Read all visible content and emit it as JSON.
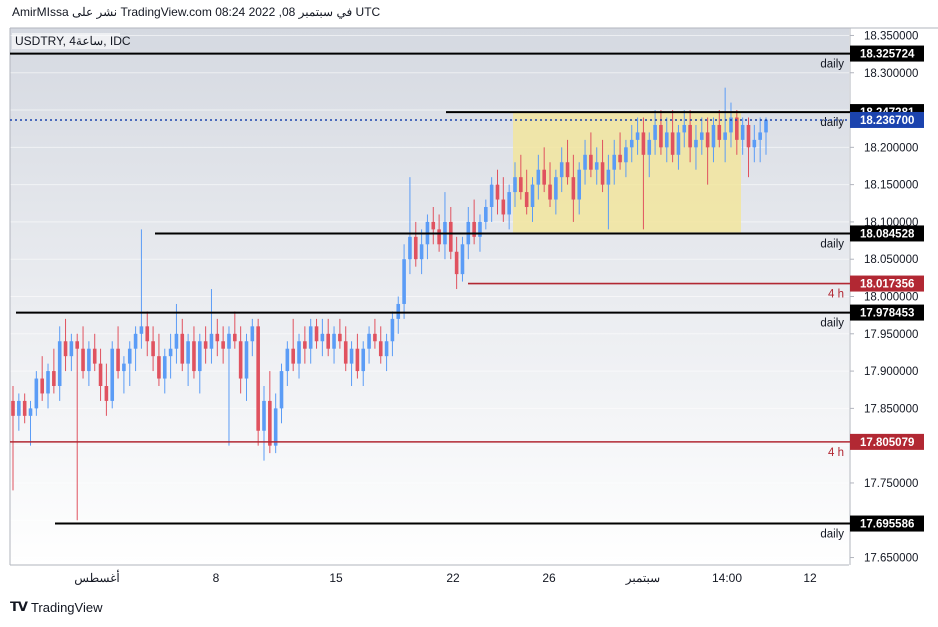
{
  "header": {
    "publish_line": "AmirMIssa نشر على TradingView.com في سبتمبر 08, 2022 08:24 UTC"
  },
  "footer": {
    "logo_text": "TradingView"
  },
  "chart_data": {
    "type": "candlestick",
    "title": "USDTRY, 4ساعة, IDC",
    "symbol": "USDTRY",
    "interval": "4ساعة",
    "source": "IDC",
    "ylim": [
      17.64,
      18.36
    ],
    "y_ticks": [
      "18.350000",
      "18.300000",
      "18.250000",
      "18.200000",
      "18.150000",
      "18.100000",
      "18.050000",
      "18.000000",
      "17.950000",
      "17.900000",
      "17.850000",
      "17.800000",
      "17.750000",
      "17.700000",
      "17.650000"
    ],
    "x_ticks": [
      "أغسطس",
      "8",
      "15",
      "22",
      "26",
      "سبتمبر",
      "14:00",
      "12"
    ],
    "current_price": "18.236700",
    "levels": [
      {
        "value": 18.325724,
        "label": "18.325724",
        "tag": "daily",
        "color": "#000000"
      },
      {
        "value": 18.247281,
        "label": "18.247281",
        "tag": "daily",
        "color": "#000000"
      },
      {
        "value": 18.084528,
        "label": "18.084528",
        "tag": "daily",
        "color": "#000000"
      },
      {
        "value": 18.017356,
        "label": "18.017356",
        "tag": "4 h",
        "color": "#b22833"
      },
      {
        "value": 17.978453,
        "label": "17.978453",
        "tag": "daily",
        "color": "#000000"
      },
      {
        "value": 17.805079,
        "label": "17.805079",
        "tag": "4 h",
        "color": "#b22833"
      },
      {
        "value": 17.695586,
        "label": "17.695586",
        "tag": "daily",
        "color": "#000000"
      }
    ],
    "zone": {
      "y_from": 18.086,
      "y_to": 18.247,
      "color": "#f2e59e"
    },
    "colors": {
      "up": "#5b9cf6",
      "down": "#e0525f",
      "price": "#1b43ae"
    },
    "candles": [
      {
        "o": 17.86,
        "h": 17.88,
        "l": 17.74,
        "c": 17.84
      },
      {
        "o": 17.84,
        "h": 17.87,
        "l": 17.82,
        "c": 17.86
      },
      {
        "o": 17.86,
        "h": 17.87,
        "l": 17.83,
        "c": 17.84
      },
      {
        "o": 17.84,
        "h": 17.86,
        "l": 17.8,
        "c": 17.85
      },
      {
        "o": 17.85,
        "h": 17.9,
        "l": 17.84,
        "c": 17.89
      },
      {
        "o": 17.89,
        "h": 17.92,
        "l": 17.86,
        "c": 17.87
      },
      {
        "o": 17.87,
        "h": 17.91,
        "l": 17.85,
        "c": 17.9
      },
      {
        "o": 17.9,
        "h": 17.93,
        "l": 17.87,
        "c": 17.88
      },
      {
        "o": 17.88,
        "h": 17.96,
        "l": 17.86,
        "c": 17.94
      },
      {
        "o": 17.94,
        "h": 17.97,
        "l": 17.9,
        "c": 17.92
      },
      {
        "o": 17.92,
        "h": 17.95,
        "l": 17.9,
        "c": 17.94
      },
      {
        "o": 17.94,
        "h": 17.95,
        "l": 17.7,
        "c": 17.93
      },
      {
        "o": 17.93,
        "h": 17.96,
        "l": 17.89,
        "c": 17.9
      },
      {
        "o": 17.9,
        "h": 17.94,
        "l": 17.88,
        "c": 17.93
      },
      {
        "o": 17.93,
        "h": 17.95,
        "l": 17.9,
        "c": 17.91
      },
      {
        "o": 17.91,
        "h": 17.93,
        "l": 17.86,
        "c": 17.88
      },
      {
        "o": 17.88,
        "h": 17.91,
        "l": 17.84,
        "c": 17.86
      },
      {
        "o": 17.86,
        "h": 17.94,
        "l": 17.85,
        "c": 17.93
      },
      {
        "o": 17.93,
        "h": 17.96,
        "l": 17.89,
        "c": 17.9
      },
      {
        "o": 17.9,
        "h": 17.92,
        "l": 17.87,
        "c": 17.91
      },
      {
        "o": 17.91,
        "h": 17.94,
        "l": 17.88,
        "c": 17.93
      },
      {
        "o": 17.93,
        "h": 17.96,
        "l": 17.9,
        "c": 17.95
      },
      {
        "o": 17.95,
        "h": 18.09,
        "l": 17.93,
        "c": 17.96
      },
      {
        "o": 17.96,
        "h": 17.98,
        "l": 17.92,
        "c": 17.94
      },
      {
        "o": 17.94,
        "h": 17.96,
        "l": 17.9,
        "c": 17.92
      },
      {
        "o": 17.92,
        "h": 17.95,
        "l": 17.88,
        "c": 17.89
      },
      {
        "o": 17.89,
        "h": 17.93,
        "l": 17.87,
        "c": 17.92
      },
      {
        "o": 17.92,
        "h": 17.95,
        "l": 17.89,
        "c": 17.93
      },
      {
        "o": 17.93,
        "h": 17.99,
        "l": 17.91,
        "c": 17.95
      },
      {
        "o": 17.95,
        "h": 17.97,
        "l": 17.9,
        "c": 17.91
      },
      {
        "o": 17.91,
        "h": 17.95,
        "l": 17.88,
        "c": 17.94
      },
      {
        "o": 17.94,
        "h": 17.96,
        "l": 17.89,
        "c": 17.9
      },
      {
        "o": 17.9,
        "h": 17.95,
        "l": 17.87,
        "c": 17.94
      },
      {
        "o": 17.94,
        "h": 17.96,
        "l": 17.91,
        "c": 17.93
      },
      {
        "o": 17.93,
        "h": 18.01,
        "l": 17.91,
        "c": 17.95
      },
      {
        "o": 17.95,
        "h": 17.97,
        "l": 17.92,
        "c": 17.94
      },
      {
        "o": 17.94,
        "h": 17.96,
        "l": 17.91,
        "c": 17.93
      },
      {
        "o": 17.93,
        "h": 17.96,
        "l": 17.8,
        "c": 17.95
      },
      {
        "o": 17.95,
        "h": 17.98,
        "l": 17.93,
        "c": 17.94
      },
      {
        "o": 17.94,
        "h": 17.96,
        "l": 17.87,
        "c": 17.89
      },
      {
        "o": 17.89,
        "h": 17.95,
        "l": 17.86,
        "c": 17.94
      },
      {
        "o": 17.94,
        "h": 17.97,
        "l": 17.92,
        "c": 17.96
      },
      {
        "o": 17.96,
        "h": 17.97,
        "l": 17.8,
        "c": 17.82
      },
      {
        "o": 17.82,
        "h": 17.88,
        "l": 17.78,
        "c": 17.86
      },
      {
        "o": 17.86,
        "h": 17.9,
        "l": 17.79,
        "c": 17.8
      },
      {
        "o": 17.8,
        "h": 17.87,
        "l": 17.79,
        "c": 17.85
      },
      {
        "o": 17.85,
        "h": 17.91,
        "l": 17.83,
        "c": 17.9
      },
      {
        "o": 17.9,
        "h": 17.94,
        "l": 17.88,
        "c": 17.93
      },
      {
        "o": 17.93,
        "h": 17.97,
        "l": 17.9,
        "c": 17.91
      },
      {
        "o": 17.91,
        "h": 17.95,
        "l": 17.89,
        "c": 17.94
      },
      {
        "o": 17.94,
        "h": 17.96,
        "l": 17.91,
        "c": 17.93
      },
      {
        "o": 17.93,
        "h": 17.97,
        "l": 17.91,
        "c": 17.96
      },
      {
        "o": 17.96,
        "h": 17.97,
        "l": 17.93,
        "c": 17.94
      },
      {
        "o": 17.94,
        "h": 17.97,
        "l": 17.92,
        "c": 17.95
      },
      {
        "o": 17.95,
        "h": 17.97,
        "l": 17.92,
        "c": 17.93
      },
      {
        "o": 17.93,
        "h": 17.96,
        "l": 17.91,
        "c": 17.95
      },
      {
        "o": 17.95,
        "h": 17.97,
        "l": 17.93,
        "c": 17.94
      },
      {
        "o": 17.94,
        "h": 17.96,
        "l": 17.9,
        "c": 17.91
      },
      {
        "o": 17.91,
        "h": 17.94,
        "l": 17.88,
        "c": 17.93
      },
      {
        "o": 17.93,
        "h": 17.95,
        "l": 17.89,
        "c": 17.9
      },
      {
        "o": 17.9,
        "h": 17.94,
        "l": 17.88,
        "c": 17.93
      },
      {
        "o": 17.93,
        "h": 17.96,
        "l": 17.91,
        "c": 17.95
      },
      {
        "o": 17.95,
        "h": 17.97,
        "l": 17.93,
        "c": 17.94
      },
      {
        "o": 17.94,
        "h": 17.96,
        "l": 17.91,
        "c": 17.92
      },
      {
        "o": 17.92,
        "h": 17.95,
        "l": 17.9,
        "c": 17.94
      },
      {
        "o": 17.94,
        "h": 17.98,
        "l": 17.92,
        "c": 17.97
      },
      {
        "o": 17.97,
        "h": 18.0,
        "l": 17.95,
        "c": 17.99
      },
      {
        "o": 17.99,
        "h": 18.07,
        "l": 17.97,
        "c": 18.05
      },
      {
        "o": 18.05,
        "h": 18.16,
        "l": 18.03,
        "c": 18.08
      },
      {
        "o": 18.08,
        "h": 18.1,
        "l": 18.04,
        "c": 18.05
      },
      {
        "o": 18.05,
        "h": 18.09,
        "l": 18.03,
        "c": 18.07
      },
      {
        "o": 18.07,
        "h": 18.11,
        "l": 18.05,
        "c": 18.1
      },
      {
        "o": 18.1,
        "h": 18.12,
        "l": 18.07,
        "c": 18.09
      },
      {
        "o": 18.09,
        "h": 18.11,
        "l": 18.06,
        "c": 18.07
      },
      {
        "o": 18.07,
        "h": 18.14,
        "l": 18.05,
        "c": 18.1
      },
      {
        "o": 18.1,
        "h": 18.12,
        "l": 18.05,
        "c": 18.06
      },
      {
        "o": 18.06,
        "h": 18.08,
        "l": 18.01,
        "c": 18.03
      },
      {
        "o": 18.03,
        "h": 18.08,
        "l": 18.02,
        "c": 18.07
      },
      {
        "o": 18.07,
        "h": 18.12,
        "l": 18.05,
        "c": 18.1
      },
      {
        "o": 18.1,
        "h": 18.13,
        "l": 18.07,
        "c": 18.08
      },
      {
        "o": 18.08,
        "h": 18.11,
        "l": 18.06,
        "c": 18.1
      },
      {
        "o": 18.1,
        "h": 18.13,
        "l": 18.09,
        "c": 18.12
      },
      {
        "o": 18.12,
        "h": 18.16,
        "l": 18.1,
        "c": 18.15
      },
      {
        "o": 18.15,
        "h": 18.17,
        "l": 18.11,
        "c": 18.13
      },
      {
        "o": 18.13,
        "h": 18.16,
        "l": 18.1,
        "c": 18.11
      },
      {
        "o": 18.11,
        "h": 18.15,
        "l": 18.09,
        "c": 18.14
      },
      {
        "o": 18.14,
        "h": 18.18,
        "l": 18.12,
        "c": 18.16
      },
      {
        "o": 18.16,
        "h": 18.19,
        "l": 18.13,
        "c": 18.14
      },
      {
        "o": 18.14,
        "h": 18.17,
        "l": 18.11,
        "c": 18.12
      },
      {
        "o": 18.12,
        "h": 18.16,
        "l": 18.1,
        "c": 18.15
      },
      {
        "o": 18.15,
        "h": 18.19,
        "l": 18.13,
        "c": 18.17
      },
      {
        "o": 18.17,
        "h": 18.2,
        "l": 18.14,
        "c": 18.15
      },
      {
        "o": 18.15,
        "h": 18.18,
        "l": 18.12,
        "c": 18.13
      },
      {
        "o": 18.13,
        "h": 18.17,
        "l": 18.11,
        "c": 18.16
      },
      {
        "o": 18.16,
        "h": 18.2,
        "l": 18.14,
        "c": 18.18
      },
      {
        "o": 18.18,
        "h": 18.21,
        "l": 18.15,
        "c": 18.16
      },
      {
        "o": 18.16,
        "h": 18.19,
        "l": 18.1,
        "c": 18.13
      },
      {
        "o": 18.13,
        "h": 18.18,
        "l": 18.11,
        "c": 18.17
      },
      {
        "o": 18.17,
        "h": 18.21,
        "l": 18.15,
        "c": 18.19
      },
      {
        "o": 18.19,
        "h": 18.22,
        "l": 18.16,
        "c": 18.17
      },
      {
        "o": 18.17,
        "h": 18.2,
        "l": 18.15,
        "c": 18.18
      },
      {
        "o": 18.18,
        "h": 18.21,
        "l": 18.14,
        "c": 18.15
      },
      {
        "o": 18.15,
        "h": 18.19,
        "l": 18.09,
        "c": 18.17
      },
      {
        "o": 18.17,
        "h": 18.21,
        "l": 18.15,
        "c": 18.19
      },
      {
        "o": 18.19,
        "h": 18.22,
        "l": 18.17,
        "c": 18.18
      },
      {
        "o": 18.18,
        "h": 18.21,
        "l": 18.16,
        "c": 18.2
      },
      {
        "o": 18.2,
        "h": 18.23,
        "l": 18.18,
        "c": 18.21
      },
      {
        "o": 18.21,
        "h": 18.24,
        "l": 18.19,
        "c": 18.22
      },
      {
        "o": 18.22,
        "h": 18.24,
        "l": 18.09,
        "c": 18.19
      },
      {
        "o": 18.19,
        "h": 18.22,
        "l": 18.16,
        "c": 18.21
      },
      {
        "o": 18.21,
        "h": 18.25,
        "l": 18.19,
        "c": 18.23
      },
      {
        "o": 18.23,
        "h": 18.25,
        "l": 18.19,
        "c": 18.2
      },
      {
        "o": 18.2,
        "h": 18.24,
        "l": 18.18,
        "c": 18.22
      },
      {
        "o": 18.22,
        "h": 18.25,
        "l": 18.18,
        "c": 18.19
      },
      {
        "o": 18.19,
        "h": 18.23,
        "l": 18.17,
        "c": 18.22
      },
      {
        "o": 18.22,
        "h": 18.25,
        "l": 18.2,
        "c": 18.23
      },
      {
        "o": 18.23,
        "h": 18.25,
        "l": 18.18,
        "c": 18.2
      },
      {
        "o": 18.2,
        "h": 18.23,
        "l": 18.17,
        "c": 18.21
      },
      {
        "o": 18.21,
        "h": 18.24,
        "l": 18.19,
        "c": 18.22
      },
      {
        "o": 18.22,
        "h": 18.24,
        "l": 18.15,
        "c": 18.2
      },
      {
        "o": 18.2,
        "h": 18.24,
        "l": 18.18,
        "c": 18.23
      },
      {
        "o": 18.23,
        "h": 18.25,
        "l": 18.2,
        "c": 18.21
      },
      {
        "o": 18.21,
        "h": 18.28,
        "l": 18.18,
        "c": 18.22
      },
      {
        "o": 18.22,
        "h": 18.26,
        "l": 18.2,
        "c": 18.24
      },
      {
        "o": 18.24,
        "h": 18.25,
        "l": 18.19,
        "c": 18.21
      },
      {
        "o": 18.21,
        "h": 18.24,
        "l": 18.19,
        "c": 18.23
      },
      {
        "o": 18.23,
        "h": 18.24,
        "l": 18.16,
        "c": 18.2
      },
      {
        "o": 18.2,
        "h": 18.23,
        "l": 18.18,
        "c": 18.21
      },
      {
        "o": 18.21,
        "h": 18.24,
        "l": 18.18,
        "c": 18.22
      },
      {
        "o": 18.22,
        "h": 18.24,
        "l": 18.19,
        "c": 18.237
      }
    ]
  }
}
